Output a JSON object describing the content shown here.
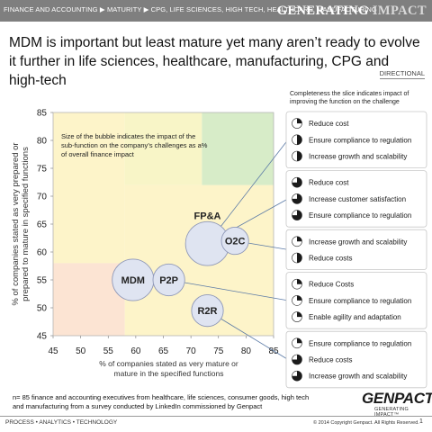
{
  "header": {
    "breadcrumb": "FINANCE AND ACCOUNTING ▶ MATURITY ▶ CPG, LIFE SCIENCES, HIGH TECH, HEALTHCARE, MANUFACTURING",
    "brand_a": "GENERATING ",
    "brand_b": "IMPACT"
  },
  "headline": "MDM is important but least mature yet many aren’t ready to evolve it further in life sciences, healthcare, manufacturing, CPG and high-tech",
  "directional": "DIRECTIONAL",
  "legend_note": "Completeness the slice indicates impact of improving the function on the challenge",
  "chart_data": {
    "type": "bubble",
    "xlabel": "% of companies stated as very mature or mature in the specified functions",
    "ylabel": "% of companies stated as very prepared or prepared to mature in specified functions",
    "xlim": [
      45,
      85
    ],
    "ylim": [
      45,
      85
    ],
    "xticks": [
      45,
      50,
      55,
      60,
      65,
      70,
      75,
      80,
      85
    ],
    "yticks": [
      45,
      50,
      55,
      60,
      65,
      70,
      75,
      80,
      85
    ],
    "annotation": "Size of the bubble indicates the impact of the sub-function on the company’s challenges as a% of overall finance impact",
    "regions": [
      {
        "color": "#fdf4c9",
        "x": [
          45,
          58
        ],
        "y": [
          58,
          85
        ]
      },
      {
        "color": "#fce4d3",
        "x": [
          45,
          58
        ],
        "y": [
          45,
          58
        ]
      },
      {
        "color": "#fdf4c9",
        "x": [
          58,
          85
        ],
        "y": [
          45,
          72
        ]
      },
      {
        "color": "#f8f5c7",
        "x": [
          58,
          72
        ],
        "y": [
          72,
          85
        ]
      },
      {
        "color": "#d7ecc8",
        "x": [
          72,
          85
        ],
        "y": [
          72,
          85
        ]
      }
    ],
    "series": [
      {
        "label": "MDM",
        "x": 59.5,
        "y": 55,
        "size": 5.5
      },
      {
        "label": "P2P",
        "x": 66,
        "y": 55,
        "size": 4.2
      },
      {
        "label": "R2R",
        "x": 73,
        "y": 49.5,
        "size": 4.2
      },
      {
        "label": "FP&A",
        "x": 73,
        "y": 61.5,
        "size": 5.8
      },
      {
        "label": "O2C",
        "x": 78,
        "y": 62,
        "size": 3.6
      }
    ],
    "callouts": [
      {
        "from": "FP&A",
        "items": [
          {
            "label": "Reduce cost",
            "fill": 0.25
          },
          {
            "label": "Ensure compliance to regulation",
            "fill": 0.5
          },
          {
            "label": "Increase growth and scalability",
            "fill": 0.5
          }
        ]
      },
      {
        "from": "FP&A",
        "items": [
          {
            "label": "Reduce cost",
            "fill": 0.75
          },
          {
            "label": "Increase customer satisfaction",
            "fill": 0.75
          },
          {
            "label": "Ensure compliance to regulation",
            "fill": 0.75
          }
        ]
      },
      {
        "from": "O2C",
        "items": [
          {
            "label": "Increase growth and scalability",
            "fill": 0.25
          },
          {
            "label": "Reduce costs",
            "fill": 0.5
          }
        ]
      },
      {
        "from": "P2P",
        "items": [
          {
            "label": "Reduce Costs",
            "fill": 0.25
          },
          {
            "label": "Ensure compliance to regulation",
            "fill": 0.25
          },
          {
            "label": "Enable agility and adaptation",
            "fill": 0.25
          }
        ]
      },
      {
        "from": "R2R",
        "items": [
          {
            "label": "Ensure compliance to regulation",
            "fill": 0.25
          },
          {
            "label": "Reduce costs",
            "fill": 0.75
          },
          {
            "label": "Increase growth and scalability",
            "fill": 0.75
          }
        ]
      }
    ],
    "colors": {
      "bubble_fill": "#dfe4f1",
      "bubble_stroke": "#8f98b8",
      "line": "#5b7aa6",
      "pie_fill": "#1b1b1b",
      "pie_empty": "#ffffff"
    }
  },
  "footnote": "n= 85 finance and accounting executives from healthcare, life sciences, consumer goods, high tech and manufacturing from a survey conducted by LinkedIn commissioned by Genpact",
  "logo": {
    "name": "GENPACT",
    "tagline": "GENERATING IMPACT™"
  },
  "footer": {
    "left": "PROCESS • ANALYTICS • TECHNOLOGY",
    "copyright": "© 2014 Copyright Genpact. All Rights Reserved.",
    "page": "1"
  }
}
